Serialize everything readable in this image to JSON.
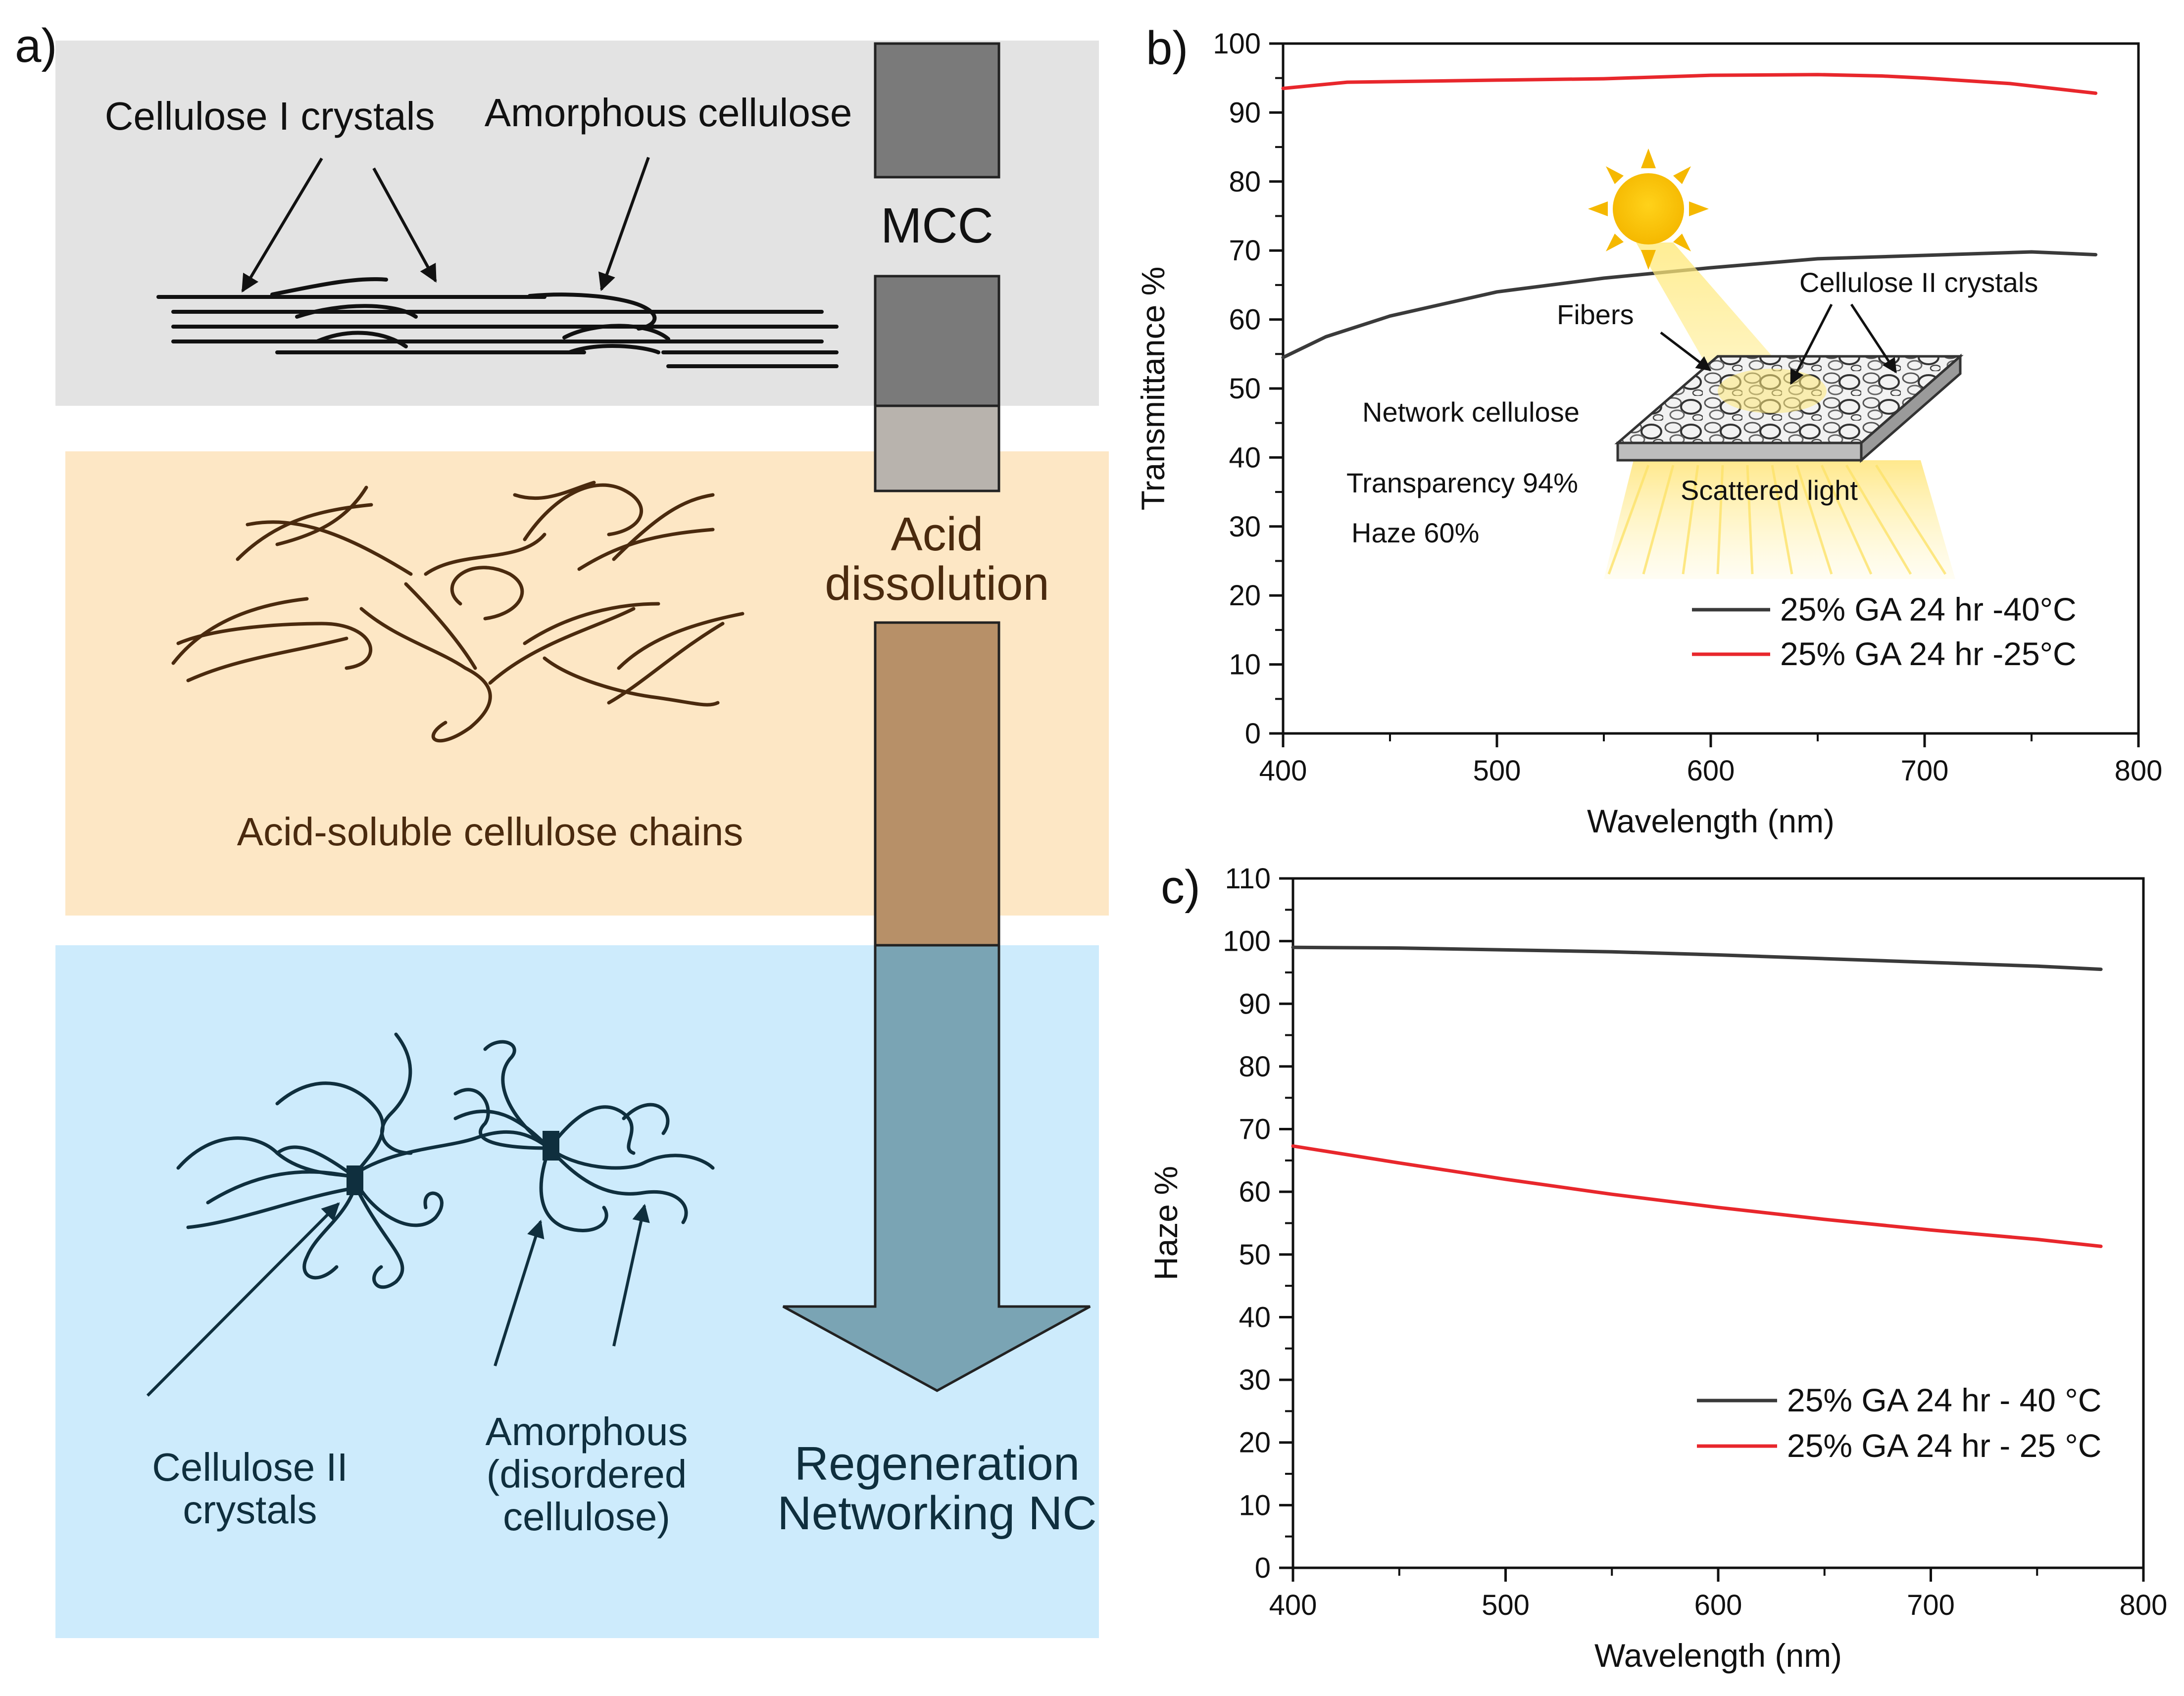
{
  "panel_a": {
    "label": "a)",
    "top_band": {
      "label_crystals": "Cellulose I crystals",
      "label_amorphous": "Amorphous cellulose"
    },
    "middle_band": {
      "caption": "Acid-soluble cellulose chains"
    },
    "bottom_band": {
      "label_cellulose_ii_line1": "Cellulose II",
      "label_cellulose_ii_line2": "crystals",
      "label_amorphous_line1": "Amorphous",
      "label_amorphous_line2": "(disordered",
      "label_amorphous_line3": "cellulose)"
    },
    "arrow": {
      "stage1": "MCC",
      "stage2_line1": "Acid",
      "stage2_line2": "dissolution",
      "stage3_line1": "Regeneration",
      "stage3_line2": "Networking NC"
    },
    "colors": {
      "top_band": "#e3e3e3",
      "middle_band": "#fde7c5",
      "bottom_band": "#cdebfc",
      "chains_brown": "#4a2a0e",
      "chains_navy": "#0f2f3e",
      "arrow_fill": "#3a6f86"
    }
  },
  "panel_b": {
    "label": "b)",
    "inset": {
      "fibers": "Fibers",
      "cellulose_ii": "Cellulose II crystals",
      "network": "Network cellulose",
      "transparency": "Transparency 94%",
      "haze": "Haze 60%",
      "scattered": "Scattered light"
    }
  },
  "panel_c": {
    "label": "c)"
  },
  "chart_data": [
    {
      "type": "line",
      "title": "",
      "xlabel": "Wavelength (nm)",
      "ylabel": "Transmittance %",
      "xlim": [
        400,
        800
      ],
      "ylim": [
        0,
        100
      ],
      "xticks": [
        400,
        500,
        600,
        700,
        800
      ],
      "yticks": [
        0,
        10,
        20,
        30,
        40,
        50,
        60,
        70,
        80,
        90,
        100
      ],
      "grid": false,
      "legend_position": "bottom-right",
      "series": [
        {
          "name": "25% GA 24 hr -40°C",
          "color": "#3a3a3a",
          "x": [
            400,
            420,
            450,
            500,
            550,
            600,
            650,
            700,
            750,
            780
          ],
          "y": [
            54.5,
            57.5,
            60.5,
            64.0,
            66.0,
            67.5,
            68.8,
            69.3,
            69.8,
            69.4
          ]
        },
        {
          "name": "25% GA 24 hr -25°C",
          "color": "#e8272c",
          "x": [
            400,
            430,
            500,
            550,
            600,
            650,
            680,
            700,
            740,
            780
          ],
          "y": [
            93.5,
            94.4,
            94.7,
            94.9,
            95.4,
            95.5,
            95.3,
            95.0,
            94.2,
            92.8
          ]
        }
      ]
    },
    {
      "type": "line",
      "title": "",
      "xlabel": "Wavelength (nm)",
      "ylabel": "Haze %",
      "xlim": [
        400,
        800
      ],
      "ylim": [
        0,
        110
      ],
      "xticks": [
        400,
        500,
        600,
        700,
        800
      ],
      "yticks": [
        0,
        10,
        20,
        30,
        40,
        50,
        60,
        70,
        80,
        90,
        100,
        110
      ],
      "grid": false,
      "legend_position": "bottom-right",
      "series": [
        {
          "name": "25% GA 24 hr - 40 °C",
          "color": "#3a3a3a",
          "x": [
            400,
            450,
            500,
            550,
            600,
            650,
            700,
            750,
            780
          ],
          "y": [
            99.0,
            98.9,
            98.6,
            98.3,
            97.8,
            97.2,
            96.6,
            96.0,
            95.5
          ]
        },
        {
          "name": "25% GA 24 hr - 25 °C",
          "color": "#e8272c",
          "x": [
            400,
            450,
            500,
            550,
            600,
            650,
            700,
            750,
            780
          ],
          "y": [
            67.3,
            64.6,
            62.0,
            59.6,
            57.5,
            55.6,
            53.9,
            52.4,
            51.3
          ]
        }
      ]
    }
  ]
}
